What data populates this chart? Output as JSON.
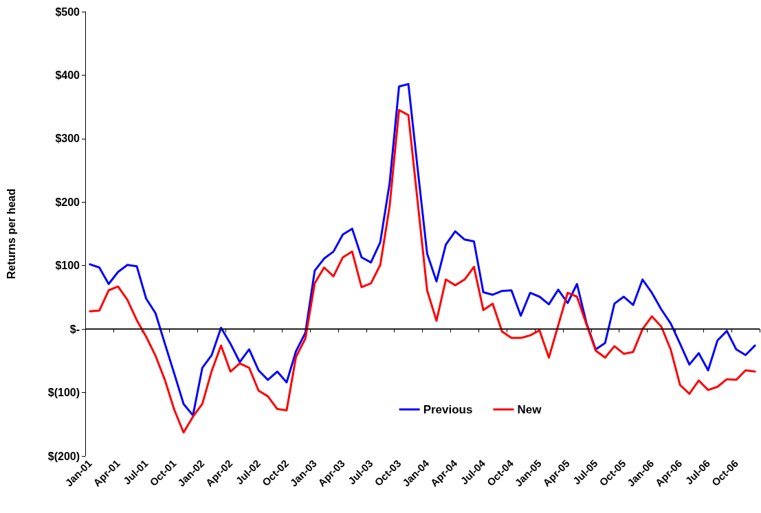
{
  "chart_data": {
    "type": "line",
    "ylabel": "Returns per head",
    "categories": [
      "Jan-01",
      null,
      null,
      "Apr-01",
      null,
      null,
      "Jul-01",
      null,
      null,
      "Oct-01",
      null,
      null,
      "Jan-02",
      null,
      null,
      "Apr-02",
      null,
      null,
      "Jul-02",
      null,
      null,
      "Oct-02",
      null,
      null,
      "Jan-03",
      null,
      null,
      "Apr-03",
      null,
      null,
      "Jul-03",
      null,
      null,
      "Oct-03",
      null,
      null,
      "Jan-04",
      null,
      null,
      "Apr-04",
      null,
      null,
      "Jul-04",
      null,
      null,
      "Oct-04",
      null,
      null,
      "Jan-05",
      null,
      null,
      "Apr-05",
      null,
      null,
      "Jul-05",
      null,
      null,
      "Oct-05",
      null,
      null,
      "Jan-06",
      null,
      null,
      "Apr-06",
      null,
      null,
      "Jul-06",
      null,
      null,
      "Oct-06",
      null,
      null
    ],
    "series": [
      {
        "name": "Previous",
        "color": "#0000ff",
        "values": [
          102,
          97,
          71,
          90,
          101,
          99,
          48,
          25,
          -23,
          -70,
          -118,
          -136,
          -61,
          -41,
          2,
          -23,
          -52,
          -32,
          -65,
          -80,
          -67,
          -84,
          -35,
          -6,
          92,
          111,
          122,
          149,
          158,
          113,
          105,
          137,
          230,
          382,
          386,
          251,
          119,
          75,
          133,
          154,
          141,
          138,
          58,
          54,
          60,
          61,
          21,
          57,
          51,
          39,
          62,
          41,
          71,
          10,
          -32,
          -22,
          40,
          51,
          38,
          78,
          57,
          31,
          9,
          -23,
          -56,
          -38,
          -65,
          -18,
          -3,
          -32,
          -41,
          -26
        ]
      },
      {
        "name": "New",
        "color": "#ff0000",
        "values": [
          28,
          29,
          61,
          67,
          46,
          14,
          -12,
          -42,
          -80,
          -127,
          -163,
          -138,
          -118,
          -66,
          -26,
          -67,
          -54,
          -61,
          -97,
          -106,
          -126,
          -128,
          -44,
          -15,
          72,
          97,
          83,
          113,
          122,
          66,
          72,
          101,
          194,
          345,
          337,
          199,
          61,
          13,
          78,
          69,
          78,
          98,
          30,
          40,
          -4,
          -14,
          -14,
          -10,
          -2,
          -45,
          6,
          57,
          51,
          8,
          -34,
          -45,
          -27,
          -39,
          -36,
          0,
          20,
          4,
          -32,
          -88,
          -102,
          -81,
          -96,
          -91,
          -79,
          -80,
          -65,
          -67
        ]
      }
    ],
    "ylim": [
      -200,
      500
    ],
    "yticks": [
      {
        "value": -200,
        "label": "$(200)"
      },
      {
        "value": -100,
        "label": "$(100)"
      },
      {
        "value": 0,
        "label": "$-"
      },
      {
        "value": 100,
        "label": "$100"
      },
      {
        "value": 200,
        "label": "$200"
      },
      {
        "value": 300,
        "label": "$300"
      },
      {
        "value": 400,
        "label": "$400"
      },
      {
        "value": 500,
        "label": "$500"
      }
    ],
    "ref_lines": [
      {
        "axis": "y",
        "value": 0,
        "color": "#000000"
      }
    ],
    "grid": false,
    "legend": "bottom",
    "marker": "none",
    "line_style": "solid"
  }
}
